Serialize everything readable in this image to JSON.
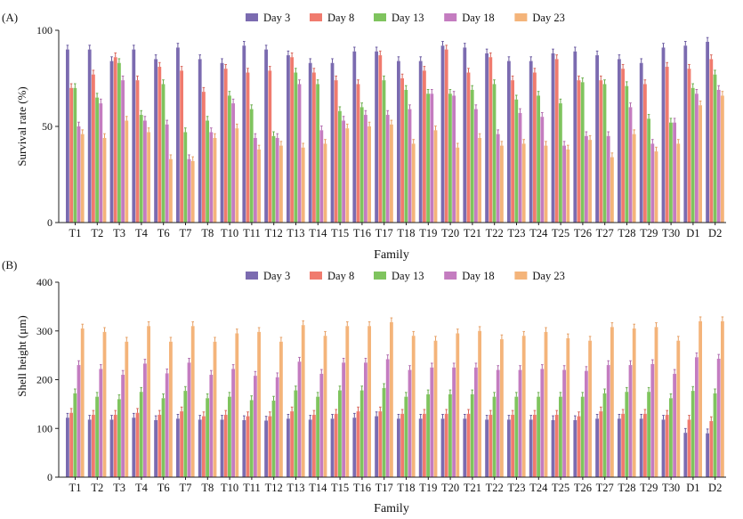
{
  "chart_data": [
    {
      "type": "bar",
      "panel_label": "(A)",
      "ylabel": "Survival rate (%)",
      "xlabel": "Family",
      "ylim": [
        0,
        100
      ],
      "yticks": [
        "0",
        "50",
        "100"
      ],
      "categories": [
        "T1",
        "T2",
        "T3",
        "T4",
        "T6",
        "T7",
        "T8",
        "T10",
        "T11",
        "T12",
        "T13",
        "T14",
        "T15",
        "T16",
        "T17",
        "T18",
        "T19",
        "T20",
        "T21",
        "T22",
        "T23",
        "T24",
        "T25",
        "T26",
        "T27",
        "T28",
        "T29",
        "T30",
        "D1",
        "D2"
      ],
      "series": [
        {
          "name": "Day 3",
          "values": [
            90,
            90,
            84,
            90,
            85,
            91,
            85,
            83,
            92,
            90,
            87,
            83,
            83,
            89,
            89,
            84,
            84,
            92,
            91,
            88,
            84,
            84,
            88,
            89,
            87,
            85,
            83,
            91,
            92,
            94
          ]
        },
        {
          "name": "Day 8",
          "values": [
            70,
            77,
            86,
            74,
            81,
            79,
            68,
            80,
            78,
            79,
            86,
            78,
            74,
            72,
            87,
            75,
            79,
            90,
            78,
            86,
            74,
            78,
            85,
            74,
            74,
            80,
            72,
            81,
            80,
            85
          ]
        },
        {
          "name": "Day 13",
          "values": [
            70,
            65,
            83,
            56,
            72,
            47,
            53,
            66,
            59,
            45,
            78,
            72,
            58,
            60,
            74,
            69,
            67,
            67,
            69,
            72,
            64,
            66,
            62,
            73,
            72,
            71,
            54,
            52,
            70,
            77
          ]
        },
        {
          "name": "Day 18",
          "values": [
            50,
            62,
            74,
            53,
            51,
            33,
            47,
            62,
            44,
            44,
            72,
            48,
            53,
            56,
            56,
            59,
            67,
            66,
            59,
            46,
            57,
            55,
            40,
            45,
            45,
            60,
            41,
            52,
            67,
            69
          ]
        },
        {
          "name": "Day 23",
          "values": [
            46,
            44,
            53,
            47,
            33,
            32,
            44,
            49,
            38,
            40,
            39,
            41,
            49,
            50,
            51,
            41,
            48,
            39,
            44,
            40,
            41,
            40,
            38,
            43,
            34,
            46,
            37,
            41,
            61,
            66
          ]
        }
      ]
    },
    {
      "type": "bar",
      "panel_label": "(B)",
      "ylabel": "Shell height (μm)",
      "xlabel": "Family",
      "ylim": [
        0,
        400
      ],
      "yticks": [
        "0",
        "100",
        "200",
        "300",
        "400"
      ],
      "categories": [
        "T1",
        "T2",
        "T3",
        "T4",
        "T6",
        "T7",
        "T8",
        "T10",
        "T11",
        "T12",
        "T13",
        "T14",
        "T15",
        "T16",
        "T17",
        "T18",
        "T19",
        "T20",
        "T21",
        "T22",
        "T23",
        "T24",
        "T25",
        "T26",
        "T27",
        "T28",
        "T29",
        "T30",
        "D1",
        "D2"
      ],
      "series": [
        {
          "name": "Day 3",
          "values": [
            122,
            118,
            118,
            122,
            117,
            120,
            118,
            118,
            117,
            116,
            120,
            118,
            120,
            122,
            125,
            120,
            120,
            120,
            120,
            118,
            118,
            118,
            117,
            117,
            120,
            120,
            120,
            118,
            91,
            90
          ]
        },
        {
          "name": "Day 8",
          "values": [
            132,
            128,
            128,
            132,
            128,
            135,
            125,
            128,
            125,
            125,
            135,
            128,
            130,
            135,
            135,
            130,
            130,
            130,
            130,
            128,
            128,
            128,
            128,
            125,
            135,
            130,
            130,
            128,
            118,
            115
          ]
        },
        {
          "name": "Day 13",
          "values": [
            172,
            165,
            160,
            175,
            162,
            177,
            162,
            165,
            158,
            157,
            178,
            165,
            178,
            178,
            183,
            165,
            170,
            170,
            170,
            165,
            165,
            165,
            165,
            165,
            172,
            175,
            175,
            162,
            177,
            172
          ]
        },
        {
          "name": "Day 18",
          "values": [
            230,
            222,
            210,
            233,
            213,
            235,
            210,
            222,
            208,
            205,
            237,
            212,
            235,
            235,
            242,
            220,
            225,
            225,
            225,
            220,
            220,
            222,
            220,
            218,
            230,
            230,
            232,
            212,
            246,
            243
          ]
        },
        {
          "name": "Day 23",
          "values": [
            305,
            298,
            278,
            310,
            278,
            310,
            278,
            295,
            298,
            278,
            312,
            290,
            310,
            310,
            318,
            290,
            280,
            295,
            300,
            283,
            290,
            298,
            285,
            280,
            308,
            305,
            308,
            280,
            320,
            320
          ]
        }
      ]
    }
  ],
  "legend": {
    "labels": [
      "Day 3",
      "Day 8",
      "Day 13",
      "Day 18",
      "Day 23"
    ],
    "colors": [
      "#7b6bb0",
      "#f07b6e",
      "#7fc45e",
      "#c47cc0",
      "#f4b47a"
    ]
  }
}
